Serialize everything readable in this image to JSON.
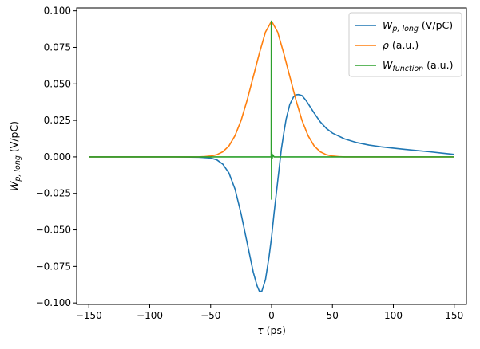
{
  "chart_data": {
    "type": "line",
    "xlabel": "τ (ps)",
    "ylabel": "W_{p,long} (V/pC)",
    "xlim": [
      -160,
      160
    ],
    "ylim": [
      -0.101,
      0.102
    ],
    "xticks": [
      -150,
      -100,
      -50,
      0,
      50,
      100,
      150
    ],
    "xtick_labels": [
      "−150",
      "−100",
      "−50",
      "0",
      "50",
      "100",
      "150"
    ],
    "yticks": [
      -0.1,
      -0.075,
      -0.05,
      -0.025,
      0.0,
      0.025,
      0.05,
      0.075,
      0.1
    ],
    "ytick_labels": [
      "−0.100",
      "−0.075",
      "−0.050",
      "−0.025",
      "0.000",
      "0.025",
      "0.050",
      "0.075",
      "0.100"
    ],
    "grid": false,
    "legend_position": "top-right",
    "series": [
      {
        "name": "W_{p,long} (V/pC)",
        "legend_main": "W",
        "legend_sub": "p, long",
        "legend_unit": " (V/pC)",
        "color": "#1f77b4",
        "x": [
          -150,
          -100,
          -80,
          -60,
          -50,
          -45,
          -40,
          -35,
          -30,
          -25,
          -20,
          -15,
          -12,
          -10,
          -8,
          -5,
          -2,
          0,
          2,
          5,
          8,
          10,
          12,
          15,
          18,
          20,
          22,
          25,
          28,
          30,
          35,
          40,
          45,
          50,
          60,
          70,
          80,
          90,
          100,
          110,
          120,
          130,
          140,
          150
        ],
        "y": [
          0.0,
          0.0,
          0.0,
          -0.0002,
          -0.0008,
          -0.002,
          -0.005,
          -0.011,
          -0.022,
          -0.039,
          -0.059,
          -0.079,
          -0.088,
          -0.092,
          -0.092,
          -0.084,
          -0.068,
          -0.055,
          -0.039,
          -0.017,
          0.005,
          0.016,
          0.026,
          0.036,
          0.041,
          0.0425,
          0.0427,
          0.042,
          0.039,
          0.0365,
          0.03,
          0.024,
          0.0195,
          0.0163,
          0.0123,
          0.0098,
          0.0081,
          0.0069,
          0.006,
          0.0051,
          0.0043,
          0.0035,
          0.0026,
          0.0017
        ]
      },
      {
        "name": "ρ (a.u.)",
        "legend_main": "ρ",
        "legend_sub": "",
        "legend_unit": " (a.u.)",
        "color": "#ff7f0e",
        "x": [
          -150,
          -60,
          -55,
          -50,
          -45,
          -40,
          -35,
          -30,
          -25,
          -20,
          -15,
          -10,
          -5,
          0,
          5,
          10,
          15,
          20,
          25,
          30,
          35,
          40,
          45,
          50,
          55,
          60,
          150
        ],
        "y": [
          0.0,
          0.0,
          0.0002,
          0.0006,
          0.0015,
          0.0035,
          0.0075,
          0.0145,
          0.025,
          0.039,
          0.055,
          0.071,
          0.0855,
          0.093,
          0.0855,
          0.071,
          0.055,
          0.039,
          0.025,
          0.0145,
          0.0075,
          0.0035,
          0.0015,
          0.0006,
          0.0002,
          0.0,
          0.0
        ]
      },
      {
        "name": "W_{function} (a.u.)",
        "legend_main": "W",
        "legend_sub": "function",
        "legend_unit": " (a.u.)",
        "color": "#2ca02c",
        "x": [
          -150,
          -0.3,
          -0.2,
          -0.1,
          0,
          0.1,
          0.2,
          0.3,
          0.5,
          1,
          2,
          150
        ],
        "y": [
          0.0,
          0.0,
          0.093,
          0.0,
          -0.029,
          -0.002,
          0.003,
          0.0,
          -0.001,
          0.0015,
          0.0,
          0.0
        ]
      }
    ]
  }
}
